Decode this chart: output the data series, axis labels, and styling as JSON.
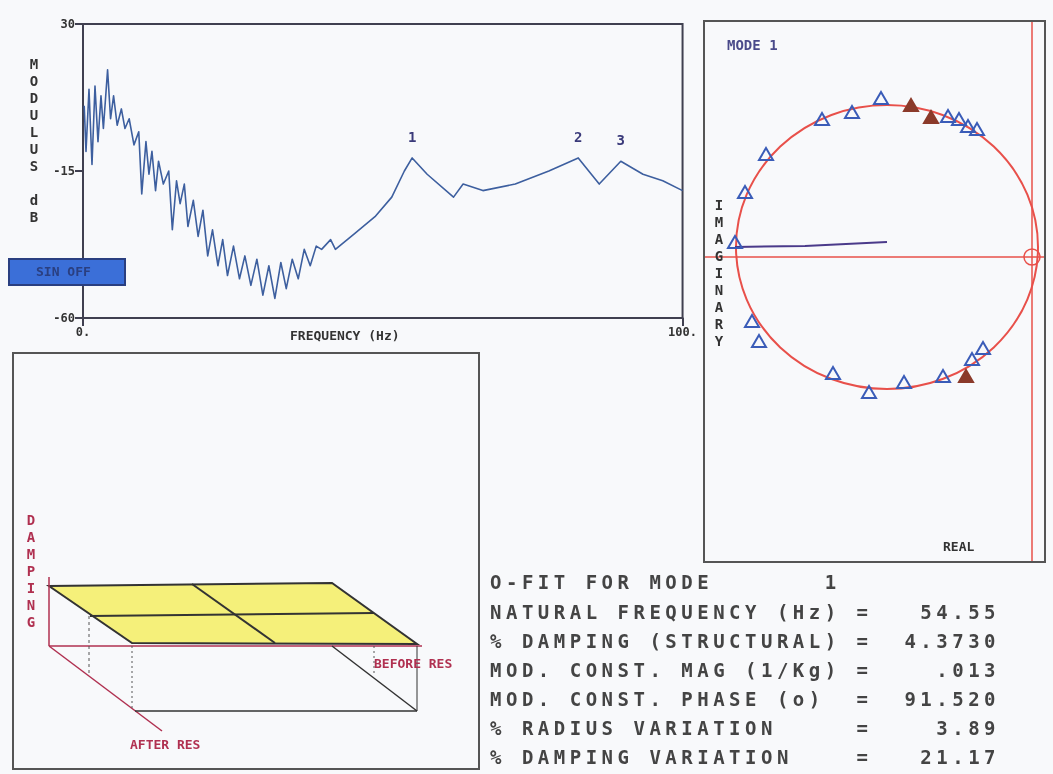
{
  "chart_data": [
    {
      "type": "line",
      "xlabel": "FREQUENCY (Hz)",
      "ylabel": "MODULUS dB",
      "xlim": [
        0,
        100
      ],
      "xticks": [
        {
          "value": 0,
          "label": "0."
        },
        {
          "value": 100,
          "label": "100."
        }
      ],
      "ylim": [
        -60,
        30
      ],
      "yticks": [
        -60,
        -15,
        30
      ],
      "grid": false,
      "color": "#3d5f9f",
      "x": [
        0.2,
        0.5,
        1.0,
        1.5,
        2.0,
        2.5,
        3.0,
        3.4,
        4.1,
        4.6,
        5.1,
        5.7,
        6.4,
        7.0,
        7.7,
        8.5,
        9.3,
        9.8,
        10.5,
        11.0,
        11.5,
        12.1,
        12.6,
        13.4,
        14.3,
        14.9,
        15.6,
        16.2,
        16.9,
        17.5,
        18.4,
        19.2,
        20.0,
        20.8,
        21.6,
        22.5,
        23.3,
        24.1,
        25.1,
        26.1,
        27.0,
        28.0,
        29.0,
        30.0,
        31.0,
        32.0,
        33.0,
        33.9,
        34.9,
        35.9,
        36.9,
        37.9,
        38.9,
        39.8,
        41.3,
        42.1,
        45.4,
        48.7,
        51.5,
        53.6,
        54.9,
        57.4,
        61.8,
        63.4,
        66.7,
        72.1,
        77.7,
        82.6,
        86.1,
        89.7,
        93.4,
        96.7,
        100
      ],
      "values": [
        5,
        -9,
        10,
        -13,
        11,
        -6,
        8,
        -2,
        16,
        1,
        8,
        -1,
        4,
        -2,
        1,
        -7,
        -3,
        -22,
        -6,
        -16,
        -9,
        -21,
        -12,
        -19,
        -15,
        -33,
        -18,
        -25,
        -19,
        -32,
        -24,
        -35,
        -27,
        -41,
        -33,
        -44,
        -36,
        -47,
        -38,
        -48,
        -41,
        -50,
        -42,
        -53,
        -44,
        -54,
        -43,
        -51,
        -42,
        -48,
        -39,
        -44,
        -38,
        -39,
        -36,
        -39,
        -34,
        -29,
        -23,
        -15,
        -11,
        -16,
        -23,
        -19,
        -21,
        -19,
        -15,
        -11,
        -19,
        -12,
        -16,
        -18,
        -21
      ],
      "annotations": [
        {
          "text": "1",
          "x": 54.9,
          "y": -11
        },
        {
          "text": "2",
          "x": 82.6,
          "y": -11
        },
        {
          "text": "3",
          "x": 89.7,
          "y": -12
        },
        "SIN OFF"
      ]
    },
    {
      "type": "other",
      "title": "MODE 1",
      "xlabel": "REAL",
      "ylabel": "IMAGINARY"
    },
    {
      "type": "other",
      "ylabel": "DAMPING",
      "annotations": [
        "BEFORE RES",
        "AFTER RES"
      ]
    },
    {
      "type": "other",
      "title": "O-FIT FOR MODE       1",
      "annotations": [
        "NATURAL FREQUENCY (Hz) =   54.55",
        "% DAMPING (STRUCTURAL) =  4.3730",
        "MOD. CONST. MAG (1/Kg) =    .013",
        "MOD. CONST. PHASE (o)  =  91.520",
        "% RADIUS VARIATION     =    3.89",
        "% DAMPING VARIATION    =   21.17"
      ]
    }
  ]
}
